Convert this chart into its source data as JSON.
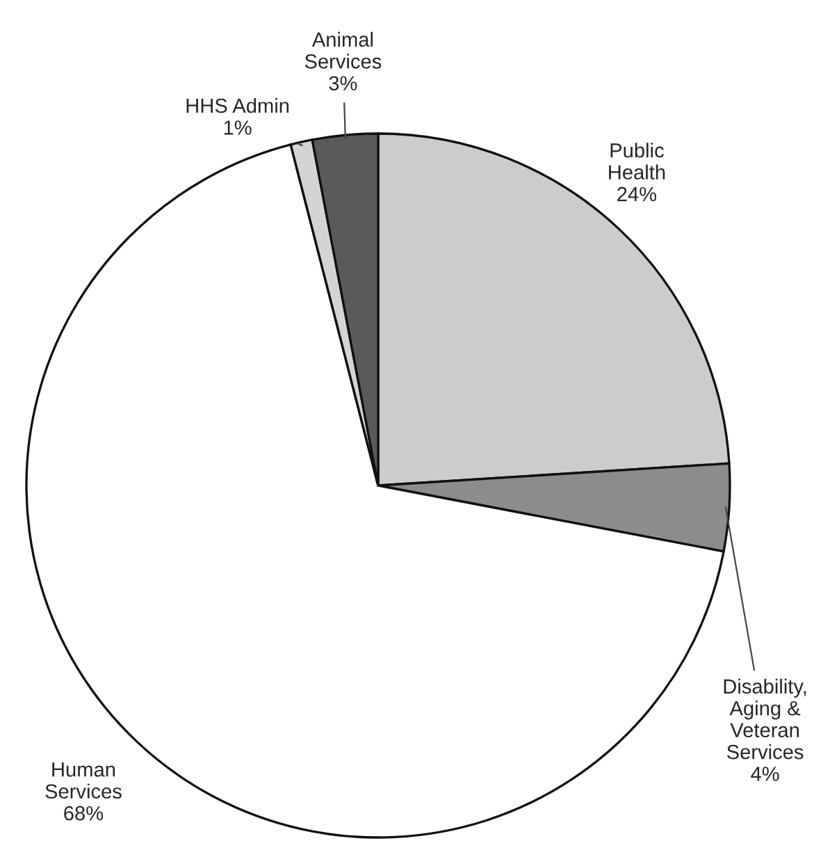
{
  "chart_data": {
    "type": "pie",
    "categories": [
      "Public\nHealth",
      "Disability,\nAging &\nVeteran\nServices",
      "Human\nServices",
      "HHS Admin",
      "Animal\nServices"
    ],
    "values": [
      24,
      4,
      68,
      1,
      3
    ],
    "value_labels": [
      "24%",
      "4%",
      "68%",
      "1%",
      "3%"
    ],
    "colors": [
      "#cccccc",
      "#8c8c8c",
      "#ffffff",
      "#d4d4d4",
      "#5a5a5a"
    ]
  }
}
